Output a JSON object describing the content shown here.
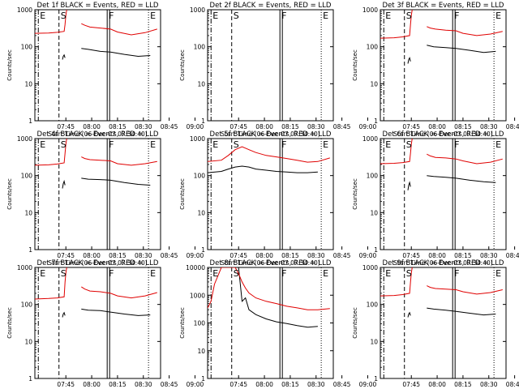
{
  "figure": {
    "start_time_label": "Start Time (06-Dec-07 07:34:40)",
    "ylabel": "Counts/sec",
    "x_ticks": [
      "07:45",
      "08:00",
      "08:15",
      "08:30",
      "08:45",
      "09:00"
    ],
    "marker_labels": [
      "E",
      "S",
      "F",
      "E"
    ],
    "colors": {
      "events": "#000000",
      "lld": "#e00000"
    }
  },
  "chart_data": [
    {
      "type": "line",
      "title": "Det 1f BLACK = Events, RED = LLD",
      "xlabel": "Start Time (06-Dec-07 07:34:40)",
      "ylabel": "Counts/sec",
      "ylim": [
        1,
        1000
      ],
      "ylog": true,
      "yticks": [
        1,
        10,
        100,
        1000
      ],
      "x_ticks": [
        "07:45",
        "08:00",
        "08:15",
        "08:30",
        "08:45",
        "09:00"
      ],
      "xlim_min": [
        -8,
        65
      ],
      "markers": [
        {
          "label": "E",
          "t": -6,
          "style": "dashdot"
        },
        {
          "label": "S",
          "t": 6,
          "style": "dashed"
        },
        {
          "label": "F",
          "t": 34,
          "style": "solid"
        },
        {
          "label": "E",
          "t": 58,
          "style": "dotted"
        }
      ],
      "series": [
        {
          "name": "Events",
          "color": "#000000",
          "x": [
            8,
            8.5,
            9,
            9.5
          ],
          "y": [
            45,
            55,
            60,
            50
          ]
        },
        {
          "name": "Events",
          "color": "#000000",
          "x": [
            19,
            23,
            30,
            36,
            44,
            52,
            59
          ],
          "y": [
            90,
            85,
            75,
            72,
            62,
            55,
            58
          ]
        },
        {
          "name": "LLD",
          "color": "#e00000",
          "x": [
            -8,
            0,
            5,
            9,
            9.5,
            10,
            10.5
          ],
          "y": [
            230,
            235,
            245,
            260,
            400,
            700,
            1000
          ]
        },
        {
          "name": "LLD",
          "color": "#e00000",
          "x": [
            19,
            21,
            24,
            30,
            36,
            40,
            48,
            56,
            63
          ],
          "y": [
            420,
            380,
            340,
            320,
            300,
            250,
            210,
            240,
            300
          ]
        }
      ]
    },
    {
      "type": "line",
      "title": "Det 2f BLACK = Events, RED = LLD",
      "xlabel": "Start Time (06-Dec-07 07:34:40)",
      "ylabel": "Counts/sec",
      "ylim": [
        1,
        1000
      ],
      "ylog": true,
      "yticks": [
        1,
        10,
        100,
        1000
      ],
      "x_ticks": [
        "07:45",
        "08:00",
        "08:15",
        "08:30",
        "08:45",
        "09:00"
      ],
      "xlim_min": [
        -8,
        65
      ],
      "markers": [
        {
          "label": "E",
          "t": -6,
          "style": "dashdot"
        },
        {
          "label": "S",
          "t": 6,
          "style": "dashed"
        },
        {
          "label": "F",
          "t": 34,
          "style": "solid"
        },
        {
          "label": "E",
          "t": 58,
          "style": "dotted"
        }
      ],
      "series": []
    },
    {
      "type": "line",
      "title": "Det 3f BLACK = Events, RED = LLD",
      "xlabel": "Start Time (06-Dec-07 07:34:40)",
      "ylabel": "Counts/sec",
      "ylim": [
        1,
        1000
      ],
      "ylog": true,
      "yticks": [
        1,
        10,
        100,
        1000
      ],
      "x_ticks": [
        "07:45",
        "08:00",
        "08:15",
        "08:30",
        "08:45",
        "09:00"
      ],
      "xlim_min": [
        -8,
        65
      ],
      "markers": [
        {
          "label": "E",
          "t": -6,
          "style": "dashdot"
        },
        {
          "label": "S",
          "t": 6,
          "style": "dashed"
        },
        {
          "label": "F",
          "t": 34,
          "style": "solid"
        },
        {
          "label": "E",
          "t": 58,
          "style": "dotted"
        }
      ],
      "series": [
        {
          "name": "Events",
          "color": "#000000",
          "x": [
            8,
            8.5,
            9,
            9.5
          ],
          "y": [
            35,
            45,
            50,
            40
          ]
        },
        {
          "name": "Events",
          "color": "#000000",
          "x": [
            19,
            23,
            30,
            36,
            44,
            52,
            59
          ],
          "y": [
            110,
            100,
            95,
            90,
            80,
            70,
            75
          ]
        },
        {
          "name": "LLD",
          "color": "#e00000",
          "x": [
            -8,
            0,
            5,
            9,
            9.5,
            10,
            10.5
          ],
          "y": [
            170,
            175,
            185,
            200,
            400,
            700,
            1000
          ]
        },
        {
          "name": "LLD",
          "color": "#e00000",
          "x": [
            19,
            21,
            24,
            30,
            36,
            40,
            48,
            56,
            63
          ],
          "y": [
            350,
            320,
            300,
            280,
            270,
            230,
            200,
            220,
            260
          ]
        }
      ]
    },
    {
      "type": "line",
      "title": "Det 4f BLACK = Events, RED = LLD",
      "xlabel": "Start Time (06-Dec-07 07:34:40)",
      "ylabel": "Counts/sec",
      "ylim": [
        1,
        1000
      ],
      "ylog": true,
      "yticks": [
        1,
        10,
        100,
        1000
      ],
      "x_ticks": [
        "07:45",
        "08:00",
        "08:15",
        "08:30",
        "08:45",
        "09:00"
      ],
      "xlim_min": [
        -8,
        65
      ],
      "markers": [
        {
          "label": "E",
          "t": -6,
          "style": "dashdot"
        },
        {
          "label": "S",
          "t": 6,
          "style": "dashed"
        },
        {
          "label": "F",
          "t": 34,
          "style": "solid"
        },
        {
          "label": "E",
          "t": 58,
          "style": "dotted"
        }
      ],
      "series": [
        {
          "name": "Events",
          "color": "#000000",
          "x": [
            8,
            8.5,
            9,
            9.5
          ],
          "y": [
            45,
            60,
            70,
            55
          ]
        },
        {
          "name": "Events",
          "color": "#000000",
          "x": [
            19,
            23,
            30,
            36,
            44,
            52,
            59
          ],
          "y": [
            85,
            80,
            78,
            75,
            65,
            58,
            55
          ]
        },
        {
          "name": "LLD",
          "color": "#e00000",
          "x": [
            -8,
            0,
            5,
            9,
            9.5,
            10,
            10.5
          ],
          "y": [
            190,
            195,
            205,
            220,
            400,
            700,
            1000
          ]
        },
        {
          "name": "LLD",
          "color": "#e00000",
          "x": [
            19,
            21,
            24,
            30,
            36,
            40,
            48,
            56,
            63
          ],
          "y": [
            320,
            290,
            270,
            260,
            250,
            210,
            190,
            210,
            240
          ]
        }
      ]
    },
    {
      "type": "line",
      "title": "Det 5f BLACK = Events, RED = LLD",
      "xlabel": "Start Time (06-Dec-07 07:34:40)",
      "ylabel": "Counts/sec",
      "ylim": [
        1,
        1000
      ],
      "ylog": true,
      "yticks": [
        1,
        10,
        100,
        1000
      ],
      "x_ticks": [
        "07:45",
        "08:00",
        "08:15",
        "08:30",
        "08:45",
        "09:00"
      ],
      "xlim_min": [
        -8,
        65
      ],
      "markers": [
        {
          "label": "E",
          "t": -6,
          "style": "dashdot"
        },
        {
          "label": "S",
          "t": 6,
          "style": "dashed"
        },
        {
          "label": "F",
          "t": 34,
          "style": "solid"
        },
        {
          "label": "E",
          "t": 58,
          "style": "dotted"
        }
      ],
      "series": [
        {
          "name": "Events",
          "color": "#000000",
          "x": [
            -8,
            0,
            4,
            8,
            12,
            16,
            20,
            26,
            32,
            38,
            44,
            50,
            56
          ],
          "y": [
            120,
            130,
            150,
            170,
            180,
            170,
            150,
            140,
            130,
            125,
            120,
            120,
            125
          ]
        },
        {
          "name": "LLD",
          "color": "#e00000",
          "x": [
            -8,
            0,
            4,
            8,
            12,
            16,
            20,
            26,
            32,
            38,
            44,
            50,
            56,
            63
          ],
          "y": [
            240,
            260,
            350,
            500,
            600,
            500,
            420,
            350,
            320,
            290,
            260,
            230,
            240,
            300
          ]
        }
      ]
    },
    {
      "type": "line",
      "title": "Det 6f BLACK = Events, RED = LLD",
      "xlabel": "Start Time (06-Dec-07 07:34:40)",
      "ylabel": "Counts/sec",
      "ylim": [
        1,
        1000
      ],
      "ylog": true,
      "yticks": [
        1,
        10,
        100,
        1000
      ],
      "x_ticks": [
        "07:45",
        "08:00",
        "08:15",
        "08:30",
        "08:45",
        "09:00"
      ],
      "xlim_min": [
        -8,
        65
      ],
      "markers": [
        {
          "label": "E",
          "t": -6,
          "style": "dashdot"
        },
        {
          "label": "S",
          "t": 6,
          "style": "dashed"
        },
        {
          "label": "F",
          "t": 34,
          "style": "solid"
        },
        {
          "label": "E",
          "t": 58,
          "style": "dotted"
        }
      ],
      "series": [
        {
          "name": "Events",
          "color": "#000000",
          "x": [
            8,
            8.5,
            9,
            9.5
          ],
          "y": [
            40,
            55,
            65,
            50
          ]
        },
        {
          "name": "Events",
          "color": "#000000",
          "x": [
            19,
            23,
            30,
            36,
            44,
            52,
            59
          ],
          "y": [
            100,
            95,
            90,
            85,
            75,
            68,
            65
          ]
        },
        {
          "name": "LLD",
          "color": "#e00000",
          "x": [
            -8,
            0,
            5,
            9,
            9.5,
            10,
            10.5
          ],
          "y": [
            210,
            215,
            225,
            240,
            400,
            700,
            1000
          ]
        },
        {
          "name": "LLD",
          "color": "#e00000",
          "x": [
            19,
            21,
            24,
            30,
            36,
            40,
            48,
            56,
            63
          ],
          "y": [
            380,
            340,
            310,
            300,
            280,
            250,
            210,
            230,
            280
          ]
        }
      ]
    },
    {
      "type": "line",
      "title": "Det 7f BLACK = Events, RED = LLD",
      "xlabel": "Start Time (06-Dec-07 07:34:40)",
      "ylabel": "Counts/sec",
      "ylim": [
        1,
        1000
      ],
      "ylog": true,
      "yticks": [
        1,
        10,
        100,
        1000
      ],
      "x_ticks": [
        "07:45",
        "08:00",
        "08:15",
        "08:30",
        "08:45",
        "09:00"
      ],
      "xlim_min": [
        -8,
        65
      ],
      "markers": [
        {
          "label": "E",
          "t": -6,
          "style": "dashdot"
        },
        {
          "label": "S",
          "t": 6,
          "style": "dashed"
        },
        {
          "label": "F",
          "t": 34,
          "style": "solid"
        },
        {
          "label": "E",
          "t": 58,
          "style": "dotted"
        }
      ],
      "series": [
        {
          "name": "Events",
          "color": "#000000",
          "x": [
            8,
            8.5,
            9,
            9.5
          ],
          "y": [
            45,
            55,
            60,
            50
          ]
        },
        {
          "name": "Events",
          "color": "#000000",
          "x": [
            19,
            23,
            30,
            36,
            44,
            52,
            59
          ],
          "y": [
            75,
            70,
            68,
            62,
            55,
            50,
            52
          ]
        },
        {
          "name": "LLD",
          "color": "#e00000",
          "x": [
            -8,
            0,
            5,
            9,
            9.5,
            10,
            10.5
          ],
          "y": [
            140,
            145,
            150,
            160,
            400,
            700,
            1000
          ]
        },
        {
          "name": "LLD",
          "color": "#e00000",
          "x": [
            19,
            21,
            24,
            30,
            36,
            40,
            48,
            56,
            63
          ],
          "y": [
            300,
            260,
            230,
            220,
            200,
            170,
            150,
            170,
            210
          ]
        }
      ]
    },
    {
      "type": "line",
      "title": "Det 8f BLACK = Events, RED = LLD",
      "xlabel": "Start Time (06-Dec-07 07:34:40)",
      "ylabel": "Counts/sec",
      "ylim": [
        1,
        10000
      ],
      "ylog": true,
      "yticks": [
        1,
        10,
        100,
        1000,
        10000
      ],
      "x_ticks": [
        "07:45",
        "08:00",
        "08:15",
        "08:30",
        "08:45",
        "09:00"
      ],
      "xlim_min": [
        -8,
        65
      ],
      "markers": [
        {
          "label": "E",
          "t": -6,
          "style": "dashdot"
        },
        {
          "label": "S",
          "t": 6,
          "style": "dashed"
        },
        {
          "label": "F",
          "t": 34,
          "style": "solid"
        },
        {
          "label": "E",
          "t": 58,
          "style": "dotted"
        }
      ],
      "series": [
        {
          "name": "Events",
          "color": "#000000",
          "x": [
            -6,
            -4,
            -2,
            0,
            2,
            4,
            6,
            8,
            10,
            12,
            14,
            16,
            20,
            26,
            32,
            38,
            44,
            50,
            56
          ],
          "y": [
            10000,
            10000,
            10000,
            10000,
            10000,
            10000,
            10000,
            10000,
            10000,
            600,
            800,
            300,
            200,
            140,
            110,
            95,
            80,
            70,
            75
          ]
        },
        {
          "name": "LLD",
          "color": "#e00000",
          "x": [
            -8,
            -6,
            -4,
            0,
            4,
            8,
            10,
            12,
            14,
            16,
            20,
            26,
            32,
            38,
            44,
            50,
            56,
            63
          ],
          "y": [
            350,
            600,
            2500,
            10000,
            10000,
            10000,
            6000,
            3000,
            1800,
            1200,
            800,
            600,
            500,
            400,
            350,
            300,
            300,
            330
          ]
        }
      ]
    },
    {
      "type": "line",
      "title": "Det 9f BLACK = Events, RED = LLD",
      "xlabel": "Start Time (06-Dec-07 07:34:40)",
      "ylabel": "Counts/sec",
      "ylim": [
        1,
        1000
      ],
      "ylog": true,
      "yticks": [
        1,
        10,
        100,
        1000
      ],
      "x_ticks": [
        "07:45",
        "08:00",
        "08:15",
        "08:30",
        "08:45",
        "09:00"
      ],
      "xlim_min": [
        -8,
        65
      ],
      "markers": [
        {
          "label": "E",
          "t": -6,
          "style": "dashdot"
        },
        {
          "label": "S",
          "t": 6,
          "style": "dashed"
        },
        {
          "label": "F",
          "t": 34,
          "style": "solid"
        },
        {
          "label": "E",
          "t": 58,
          "style": "dotted"
        }
      ],
      "series": [
        {
          "name": "Events",
          "color": "#000000",
          "x": [
            8,
            8.5,
            9,
            9.5
          ],
          "y": [
            45,
            55,
            60,
            50
          ]
        },
        {
          "name": "Events",
          "color": "#000000",
          "x": [
            19,
            23,
            30,
            36,
            44,
            52,
            59
          ],
          "y": [
            80,
            75,
            70,
            65,
            58,
            52,
            55
          ]
        },
        {
          "name": "LLD",
          "color": "#e00000",
          "x": [
            -8,
            0,
            5,
            9,
            9.5,
            10,
            10.5
          ],
          "y": [
            170,
            175,
            185,
            200,
            400,
            700,
            1000
          ]
        },
        {
          "name": "LLD",
          "color": "#e00000",
          "x": [
            19,
            21,
            24,
            30,
            36,
            40,
            48,
            56,
            63
          ],
          "y": [
            320,
            290,
            270,
            260,
            250,
            220,
            190,
            210,
            250
          ]
        }
      ]
    }
  ]
}
